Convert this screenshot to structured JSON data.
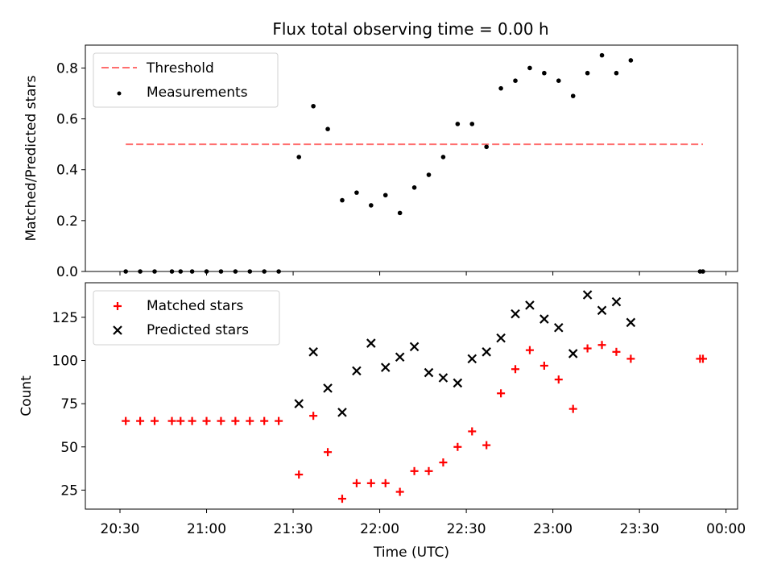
{
  "colors": {
    "threshold": "#ff6e6e",
    "measurements": "#000000",
    "matched": "#ff0000",
    "predicted": "#000000"
  },
  "chart_data": [
    {
      "type": "scatter",
      "title": "Flux total observing time = 0.00 h",
      "xlabel": "",
      "ylabel": "Matched/Predicted stars",
      "xlim": [
        "20:18",
        "00:04"
      ],
      "ylim": [
        0,
        0.89
      ],
      "yticks": [
        0.0,
        0.2,
        0.4,
        0.6,
        0.8
      ],
      "ytick_labels": [
        "0.0",
        "0.2",
        "0.4",
        "0.6",
        "0.8"
      ],
      "legend_position": "top-left",
      "series": [
        {
          "name": "Threshold",
          "kind": "dashed-line",
          "x": [
            "20:32",
            "23:52"
          ],
          "y": [
            0.5,
            0.5
          ]
        },
        {
          "name": "Measurements",
          "kind": "points",
          "x": [
            "20:32",
            "20:37",
            "20:42",
            "20:48",
            "20:51",
            "20:55",
            "21:00",
            "21:05",
            "21:10",
            "21:15",
            "21:20",
            "21:25",
            "21:32",
            "21:37",
            "21:42",
            "21:47",
            "21:52",
            "21:57",
            "22:02",
            "22:07",
            "22:12",
            "22:17",
            "22:22",
            "22:27",
            "22:32",
            "22:37",
            "22:42",
            "22:47",
            "22:52",
            "22:57",
            "23:02",
            "23:07",
            "23:12",
            "23:17",
            "23:22",
            "23:27",
            "23:51",
            "23:52"
          ],
          "y": [
            0,
            0,
            0,
            0,
            0,
            0,
            0,
            0,
            0,
            0,
            0,
            0,
            0.45,
            0.65,
            0.56,
            0.28,
            0.31,
            0.26,
            0.3,
            0.23,
            0.33,
            0.38,
            0.45,
            0.58,
            0.58,
            0.49,
            0.72,
            0.75,
            0.8,
            0.78,
            0.75,
            0.69,
            0.78,
            0.85,
            0.78,
            0.83,
            0,
            0
          ]
        }
      ]
    },
    {
      "type": "scatter",
      "title": "",
      "xlabel": "Time (UTC)",
      "ylabel": "Count",
      "xlim": [
        "20:18",
        "00:04"
      ],
      "ylim": [
        14,
        145
      ],
      "xticks": [
        "20:30",
        "21:00",
        "21:30",
        "22:00",
        "22:30",
        "23:00",
        "23:30",
        "00:00"
      ],
      "yticks": [
        25,
        50,
        75,
        100,
        125
      ],
      "ytick_labels": [
        "25",
        "50",
        "75",
        "100",
        "125"
      ],
      "legend_position": "top-left",
      "series": [
        {
          "name": "Matched stars",
          "marker": "plus",
          "x": [
            "20:32",
            "20:37",
            "20:42",
            "20:48",
            "20:51",
            "20:55",
            "21:00",
            "21:05",
            "21:10",
            "21:15",
            "21:20",
            "21:25",
            "21:32",
            "21:37",
            "21:42",
            "21:47",
            "21:52",
            "21:57",
            "22:02",
            "22:07",
            "22:12",
            "22:17",
            "22:22",
            "22:27",
            "22:32",
            "22:37",
            "22:42",
            "22:47",
            "22:52",
            "22:57",
            "23:02",
            "23:07",
            "23:12",
            "23:17",
            "23:22",
            "23:27",
            "23:51",
            "23:52"
          ],
          "y": [
            65,
            65,
            65,
            65,
            65,
            65,
            65,
            65,
            65,
            65,
            65,
            65,
            34,
            68,
            47,
            20,
            29,
            29,
            29,
            24,
            36,
            36,
            41,
            50,
            59,
            51,
            81,
            95,
            106,
            97,
            89,
            72,
            107,
            109,
            105,
            101,
            101,
            101
          ]
        },
        {
          "name": "Predicted stars",
          "marker": "x",
          "x": [
            "21:32",
            "21:37",
            "21:42",
            "21:47",
            "21:52",
            "21:57",
            "22:02",
            "22:07",
            "22:12",
            "22:17",
            "22:22",
            "22:27",
            "22:32",
            "22:37",
            "22:42",
            "22:47",
            "22:52",
            "22:57",
            "23:02",
            "23:07",
            "23:12",
            "23:17",
            "23:22",
            "23:27"
          ],
          "y": [
            75,
            105,
            84,
            70,
            94,
            110,
            96,
            102,
            108,
            93,
            90,
            87,
            101,
            105,
            113,
            127,
            132,
            124,
            119,
            104,
            138,
            129,
            134,
            122
          ]
        }
      ]
    }
  ]
}
